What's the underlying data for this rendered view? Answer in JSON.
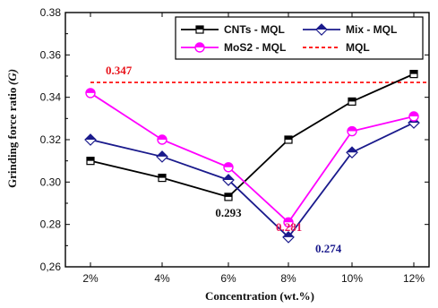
{
  "chart_data": {
    "type": "line",
    "categories": [
      "2%",
      "4%",
      "6%",
      "8%",
      "10%",
      "12%"
    ],
    "xlabel": "Concentration   (wt.%)",
    "ylabel": "Grinding force ratio",
    "ylabel_symbol": "(G)",
    "ylim": [
      0.26,
      0.38
    ],
    "yticks": [
      "0,26",
      "0.28",
      "0.30",
      "0.32",
      "0.34",
      "0.36",
      "0.38"
    ],
    "yticks_values": [
      0.26,
      0.28,
      0.3,
      0.32,
      0.34,
      0.36,
      0.38
    ],
    "grid": false,
    "legend_placement": "top-right",
    "series": [
      {
        "name": "CNTs - MQL",
        "values": [
          0.31,
          0.302,
          0.293,
          0.32,
          0.338,
          0.351
        ],
        "color": "#000000",
        "marker": "half-square"
      },
      {
        "name": "Mix - MQL",
        "values": [
          0.32,
          0.312,
          0.301,
          0.274,
          0.314,
          0.328
        ],
        "color": "#1a1a8c",
        "marker": "half-diamond"
      },
      {
        "name": "MoS2 - MQL",
        "values": [
          0.342,
          0.32,
          0.307,
          0.281,
          0.324,
          0.331
        ],
        "color": "#ff00ff",
        "marker": "half-circle"
      }
    ],
    "reference": {
      "name": "MQL",
      "value": 0.347,
      "color": "#ff0000",
      "style": "dashed"
    },
    "annotations": [
      {
        "text": "0.347",
        "color": "#e8141c"
      },
      {
        "text": "0.293",
        "color": "#111111"
      },
      {
        "text": "0.281",
        "color": "#e8145a"
      },
      {
        "text": "0.274",
        "color": "#1a1a8c"
      }
    ]
  }
}
